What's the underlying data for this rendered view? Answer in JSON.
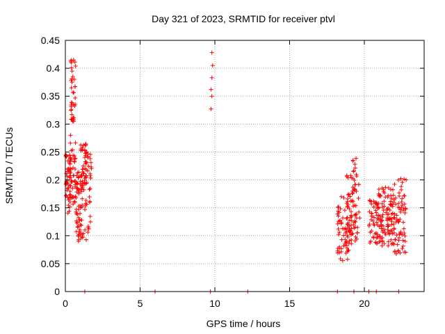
{
  "chart_data": {
    "type": "scatter",
    "title": "Day 321 of 2023, SRMTID for receiver ptvl",
    "xlabel": "GPS time / hours",
    "ylabel": "SRMTID / TECUs",
    "xlim": [
      0,
      24
    ],
    "ylim": [
      0,
      0.45
    ],
    "xticks": [
      "0",
      "5",
      "10",
      "15",
      "20"
    ],
    "yticks": [
      "0",
      "0.05",
      "0.1",
      "0.15",
      "0.2",
      "0.25",
      "0.3",
      "0.35",
      "0.4",
      "0.45"
    ],
    "grid": true,
    "marker": "+",
    "color": "#ff0000",
    "clusters": [
      {
        "x_range": [
          0.0,
          0.35
        ],
        "y_range": [
          0.14,
          0.245
        ],
        "count": 55
      },
      {
        "x_range": [
          0.3,
          0.7
        ],
        "y_range": [
          0.15,
          0.27
        ],
        "count": 35
      },
      {
        "x_range": [
          0.35,
          0.7
        ],
        "y_range": [
          0.3,
          0.415
        ],
        "count": 28
      },
      {
        "x_range": [
          0.7,
          1.2
        ],
        "y_range": [
          0.09,
          0.22
        ],
        "count": 65
      },
      {
        "x_range": [
          1.0,
          1.4
        ],
        "y_range": [
          0.18,
          0.265
        ],
        "count": 30
      },
      {
        "x_range": [
          1.3,
          1.75
        ],
        "y_range": [
          0.09,
          0.25
        ],
        "count": 45
      },
      {
        "x_range": [
          18.2,
          19.0
        ],
        "y_range": [
          0.055,
          0.17
        ],
        "count": 60
      },
      {
        "x_range": [
          18.8,
          19.5
        ],
        "y_range": [
          0.08,
          0.21
        ],
        "count": 50
      },
      {
        "x_range": [
          19.2,
          19.7
        ],
        "y_range": [
          0.09,
          0.24
        ],
        "count": 35
      },
      {
        "x_range": [
          20.3,
          21.0
        ],
        "y_range": [
          0.085,
          0.165
        ],
        "count": 50
      },
      {
        "x_range": [
          20.9,
          21.6
        ],
        "y_range": [
          0.08,
          0.19
        ],
        "count": 55
      },
      {
        "x_range": [
          21.5,
          22.1
        ],
        "y_range": [
          0.08,
          0.19
        ],
        "count": 55
      },
      {
        "x_range": [
          22.0,
          22.8
        ],
        "y_range": [
          0.065,
          0.21
        ],
        "count": 60
      }
    ],
    "points": [
      [
        0.4,
        0.41
      ],
      [
        0.55,
        0.415
      ],
      [
        0.45,
        0.395
      ],
      [
        0.5,
        0.385
      ],
      [
        0.6,
        0.38
      ],
      [
        0.45,
        0.375
      ],
      [
        0.4,
        0.365
      ],
      [
        0.55,
        0.335
      ],
      [
        0.45,
        0.338
      ],
      [
        0.5,
        0.305
      ],
      [
        0.35,
        0.28
      ],
      [
        9.8,
        0.428
      ],
      [
        9.85,
        0.405
      ],
      [
        9.8,
        0.383
      ],
      [
        9.75,
        0.362
      ],
      [
        9.8,
        0.35
      ],
      [
        9.75,
        0.327
      ],
      [
        1.3,
        0.0
      ],
      [
        6.0,
        0.0
      ],
      [
        9.7,
        0.0
      ],
      [
        12.2,
        0.0
      ],
      [
        18.2,
        0.0
      ],
      [
        19.3,
        0.0
      ],
      [
        20.3,
        0.0
      ],
      [
        20.8,
        0.0
      ],
      [
        22.3,
        0.0
      ]
    ]
  }
}
